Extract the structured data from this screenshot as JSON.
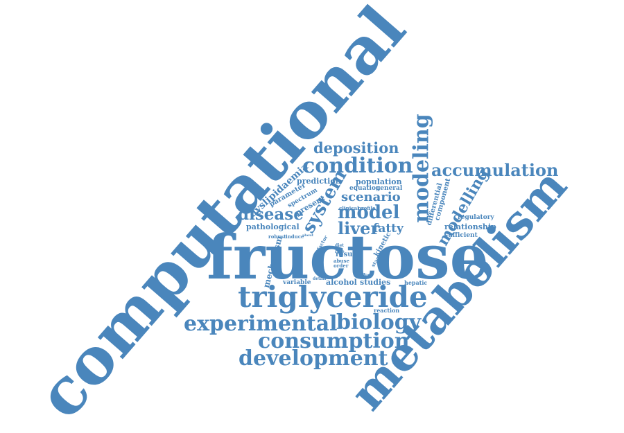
{
  "colors": {
    "word": "#4a86bc",
    "background": "#ffffff"
  },
  "words": [
    "computational",
    "metabolism",
    "fructose",
    "triglyceride",
    "experimental",
    "biology",
    "consumption",
    "development",
    "condition",
    "accumulation",
    "deposition",
    "modeling",
    "modelling",
    "system",
    "model",
    "disease",
    "liver",
    "scenario",
    "fatty",
    "dyslipidaemia",
    "prediction",
    "population",
    "parameter",
    "equation",
    "general",
    "spectrum",
    "present",
    "clinical",
    "profile",
    "pathological",
    "differential",
    "component",
    "regulatory",
    "relationship",
    "sufficient",
    "robust",
    "induce",
    "about",
    "kinetic",
    "factor",
    "diet",
    "rate",
    "result",
    "abuse",
    "order",
    "excess",
    "mechanism",
    "stage",
    "effect",
    "variable",
    "detail",
    "alcohol",
    "studies",
    "hepatic",
    "reaction"
  ]
}
